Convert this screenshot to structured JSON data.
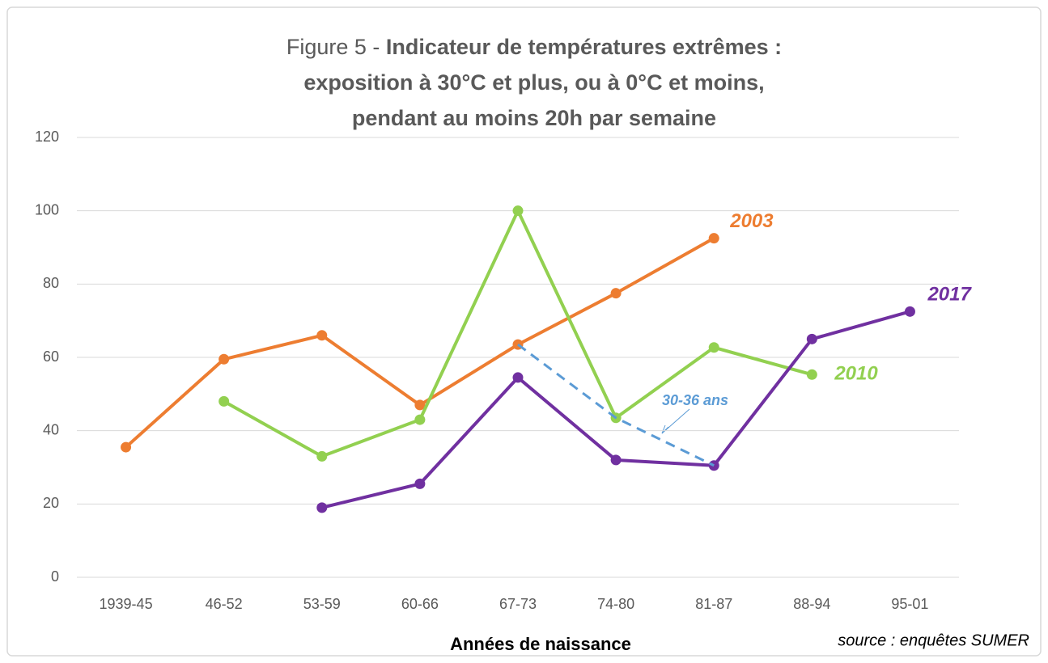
{
  "chart_data": {
    "type": "line",
    "title": "Figure 5 -",
    "title_bold": [
      "Indicateur de températures extrêmes :",
      "exposition à 30°C et plus, ou à 0°C et moins,",
      "pendant au moins 20h par semaine"
    ],
    "x_label": "Années de naissance",
    "source": "source : enquêtes SUMER",
    "categories": [
      "1939-45",
      "46-52",
      "53-59",
      "60-66",
      "67-73",
      "74-80",
      "81-87",
      "88-94",
      "95-01"
    ],
    "series": [
      {
        "name": "2003",
        "color": "#ED7D31",
        "values": [
          35.5,
          59.5,
          66,
          47,
          63.5,
          77.5,
          92.5,
          null,
          null
        ]
      },
      {
        "name": "2010",
        "color": "#92D050",
        "values": [
          null,
          48,
          33,
          43,
          100,
          43.5,
          62.7,
          55.3,
          null
        ]
      },
      {
        "name": "2017",
        "color": "#7030A0",
        "values": [
          null,
          null,
          19,
          25.5,
          54.5,
          32,
          30.5,
          65,
          72.5
        ]
      }
    ],
    "annotation": {
      "label": "30-36 ans",
      "color": "#5B9BD5"
    },
    "ylim": [
      0,
      120
    ],
    "yticks": [
      0,
      20,
      40,
      60,
      80,
      100,
      120
    ],
    "grid": true
  }
}
